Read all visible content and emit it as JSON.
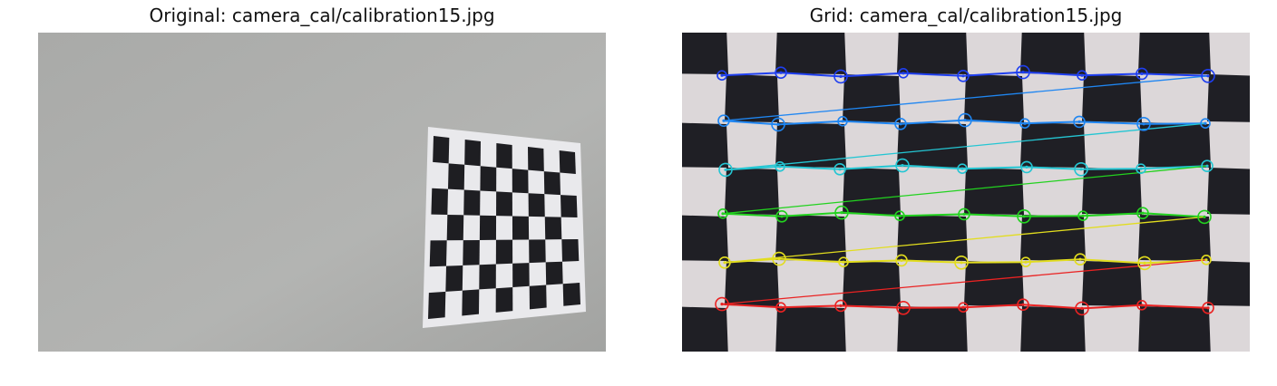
{
  "figure": {
    "left_title": "Original: camera_cal/calibration15.jpg",
    "right_title": "Grid: camera_cal/calibration15.jpg"
  },
  "images": {
    "original": {
      "description_icon": "checkerboard-photo-icon",
      "colors": {
        "wall": "#a6a7a5",
        "board_dark": "#1e1e22",
        "board_light": "#e9e9ec"
      }
    },
    "grid": {
      "description_icon": "warped-checkerboard-icon",
      "board": {
        "columns": 9,
        "rows": 6
      },
      "row_colors": [
        "#1f3ff0",
        "#1f86f2",
        "#24c6d3",
        "#22d21f",
        "#e2dd1e",
        "#ea2222"
      ],
      "colors": {
        "dark": "#1f1f25",
        "light": "#dcd7d9"
      }
    }
  }
}
